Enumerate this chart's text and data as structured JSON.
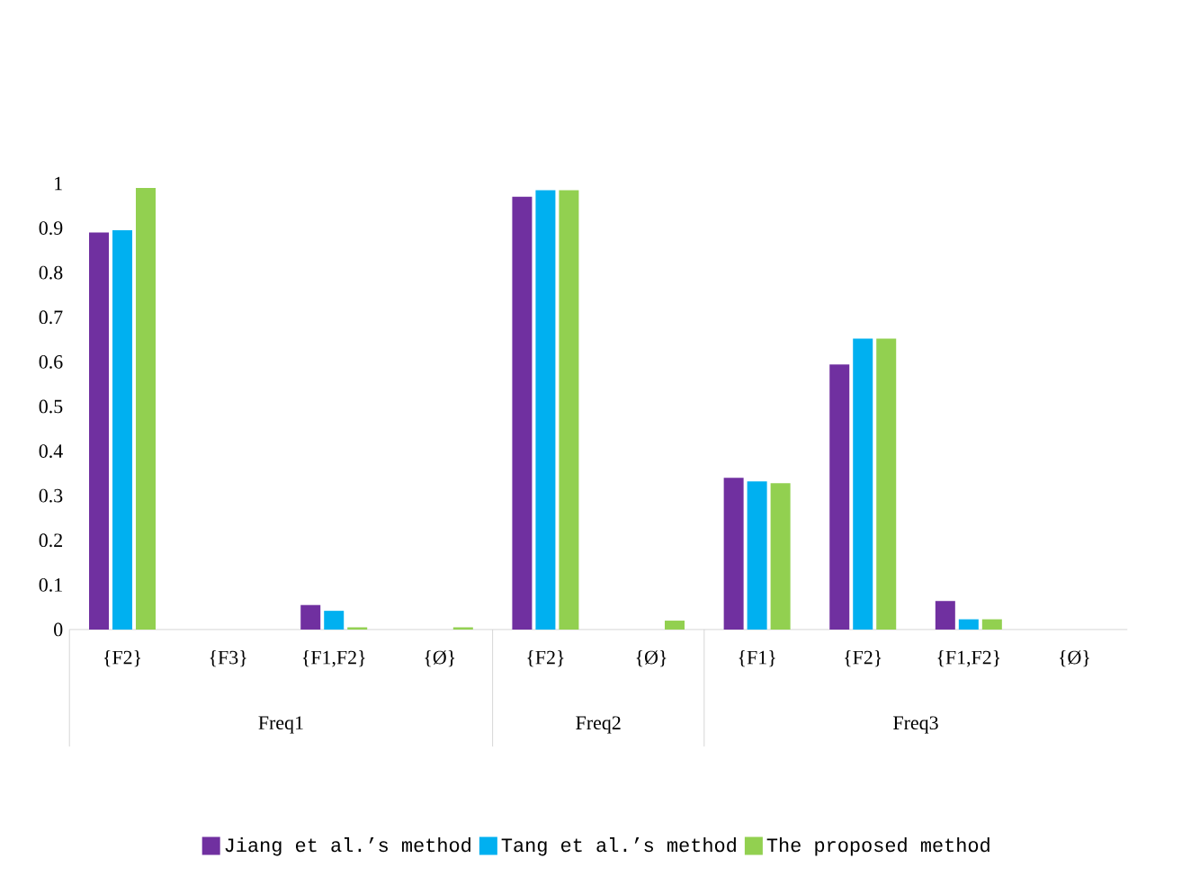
{
  "chart_data": {
    "type": "bar",
    "categories": [
      "{F2}",
      "{F3}",
      "{F1,F2}",
      "{Ø}",
      "{F2}",
      "{Ø}",
      "{F1}",
      "{F2}",
      "{F1,F2}",
      "{Ø}"
    ],
    "series": [
      {
        "name": "Jiang et al.’s method",
        "color": "#7030a0",
        "values": [
          0.89,
          0,
          0.055,
          0,
          0.97,
          0,
          0.34,
          0.594,
          0.064,
          0
        ]
      },
      {
        "name": "Tang et al.’s method",
        "color": "#00b0f0",
        "values": [
          0.895,
          0,
          0.042,
          0,
          0.985,
          0,
          0.332,
          0.652,
          0.023,
          0
        ]
      },
      {
        "name": "The proposed method",
        "color": "#92d050",
        "values": [
          0.99,
          0,
          0.005,
          0.005,
          0.985,
          0.02,
          0.328,
          0.652,
          0.023,
          0
        ]
      }
    ],
    "annotations": [
      "Freq1",
      "Freq2",
      "Freq3"
    ],
    "ylim": [
      0,
      1
    ],
    "yticks": [
      0,
      0.1,
      0.2,
      0.3,
      0.4,
      0.5,
      0.6,
      0.7,
      0.8,
      0.9,
      1
    ],
    "grid": false,
    "legend": "bottom"
  }
}
